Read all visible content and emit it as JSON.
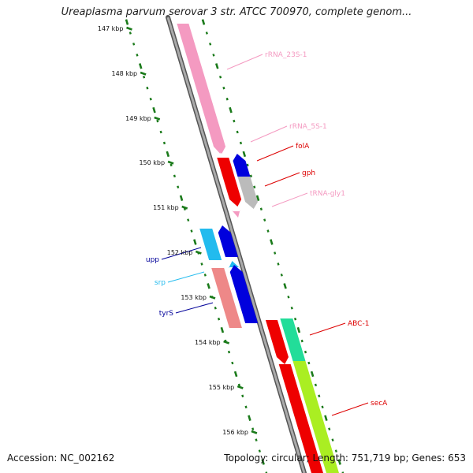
{
  "header": {
    "title": "Ureaplasma parvum serovar 3 str. ATCC 700970, complete genom..."
  },
  "footer": {
    "accession": "Accession: NC_002162",
    "topology": "Topology: circular; Length: 751,719 bp; Genes: 653"
  },
  "ticks": [
    {
      "label": "147 kbp"
    },
    {
      "label": "148 kbp"
    },
    {
      "label": "149 kbp"
    },
    {
      "label": "150 kbp"
    },
    {
      "label": "151 kbp"
    },
    {
      "label": "152 kbp"
    },
    {
      "label": "153 kbp"
    },
    {
      "label": "154 kbp"
    },
    {
      "label": "155 kbp"
    },
    {
      "label": "156 kbp"
    }
  ],
  "genes": [
    {
      "name": "rRNA_23S-1",
      "color": "#f49ac1"
    },
    {
      "name": "rRNA_5S-1",
      "color": "#f49ac1"
    },
    {
      "name": "folA",
      "color": "#dd0000"
    },
    {
      "name": "gph",
      "color": "#dd0000"
    },
    {
      "name": "tRNA-gly1",
      "color": "#f49ac1"
    },
    {
      "name": "upp",
      "color": "#000099"
    },
    {
      "name": "srp",
      "color": "#22bbee"
    },
    {
      "name": "tyrS",
      "color": "#000099"
    },
    {
      "name": "ABC-1",
      "color": "#dd0000"
    },
    {
      "name": "secA",
      "color": "#dd0000"
    }
  ],
  "colors": {
    "backbone": "#888888",
    "tick_mark": "#1a7a1a",
    "rRNA": "#f49ac1",
    "tRNA": "#f49ac1",
    "cds_red": "#ee0000",
    "cds_blue": "#0000dd",
    "cds_cyan": "#22bbee",
    "cds_salmon": "#ee8888",
    "cds_teal": "#22dd99",
    "cds_lime": "#aaee22",
    "cds_grey": "#bbbbbb"
  }
}
